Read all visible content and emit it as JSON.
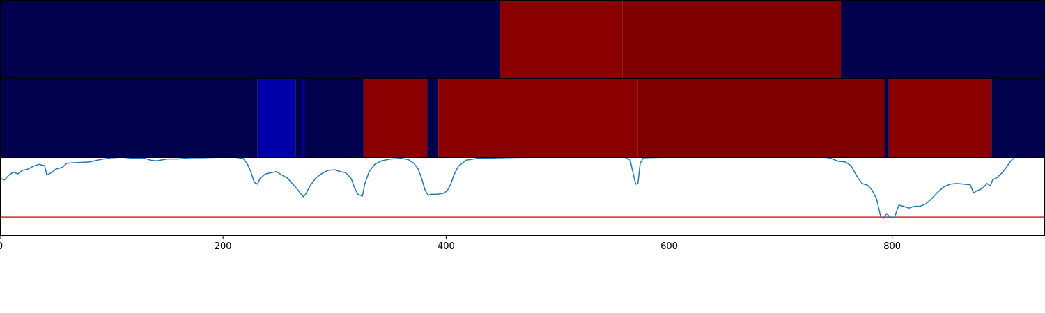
{
  "chart_data": [
    {
      "type": "heatmap",
      "colormap": "seismic",
      "band": "top",
      "segments": [
        {
          "x0": 0,
          "x1": 448,
          "color": "#00004c"
        },
        {
          "x0": 448,
          "x1": 558,
          "color": "#8a0000"
        },
        {
          "x0": 558,
          "x1": 754,
          "color": "#7f0000"
        },
        {
          "x0": 754,
          "x1": 937,
          "color": "#00004c"
        }
      ]
    },
    {
      "type": "heatmap",
      "colormap": "seismic",
      "band": "middle",
      "segments": [
        {
          "x0": 0,
          "x1": 231,
          "color": "#00004c"
        },
        {
          "x0": 231,
          "x1": 265,
          "color": "#0000a8"
        },
        {
          "x0": 265,
          "x1": 271,
          "color": "#00004c"
        },
        {
          "x0": 271,
          "x1": 273,
          "color": "#0000a0"
        },
        {
          "x0": 273,
          "x1": 326,
          "color": "#00004c"
        },
        {
          "x0": 326,
          "x1": 383,
          "color": "#8a0000"
        },
        {
          "x0": 383,
          "x1": 393,
          "color": "#00004c"
        },
        {
          "x0": 393,
          "x1": 572,
          "color": "#8a0000"
        },
        {
          "x0": 572,
          "x1": 793,
          "color": "#7f0000"
        },
        {
          "x0": 793,
          "x1": 797,
          "color": "#00004c"
        },
        {
          "x0": 797,
          "x1": 889,
          "color": "#8a0000"
        },
        {
          "x0": 889,
          "x1": 937,
          "color": "#00004c"
        }
      ]
    },
    {
      "type": "line",
      "xlim": [
        0,
        937
      ],
      "ylim": [
        -0.3,
        1.0
      ],
      "x_ticks": [
        0,
        200,
        400,
        600,
        800
      ],
      "x_tick_labels": [
        "0",
        "200",
        "400",
        "600",
        "800"
      ],
      "threshold": {
        "y": 0.0,
        "color": "#d62728"
      },
      "series": [
        {
          "color": "#1f77b4",
          "points": [
            [
              0,
              0.65
            ],
            [
              4,
              0.62
            ],
            [
              8,
              0.7
            ],
            [
              12,
              0.75
            ],
            [
              16,
              0.72
            ],
            [
              20,
              0.78
            ],
            [
              25,
              0.8
            ],
            [
              30,
              0.85
            ],
            [
              35,
              0.88
            ],
            [
              40,
              0.86
            ],
            [
              42,
              0.7
            ],
            [
              46,
              0.74
            ],
            [
              50,
              0.8
            ],
            [
              56,
              0.83
            ],
            [
              60,
              0.9
            ],
            [
              70,
              0.91
            ],
            [
              80,
              0.92
            ],
            [
              90,
              0.96
            ],
            [
              100,
              0.99
            ],
            [
              110,
              1.0
            ],
            [
              120,
              0.98
            ],
            [
              130,
              0.98
            ],
            [
              135,
              0.95
            ],
            [
              140,
              0.94
            ],
            [
              150,
              0.97
            ],
            [
              160,
              0.97
            ],
            [
              170,
              0.99
            ],
            [
              180,
              0.99
            ],
            [
              200,
              1.0
            ],
            [
              210,
              1.0
            ],
            [
              218,
              0.98
            ],
            [
              222,
              0.88
            ],
            [
              225,
              0.75
            ],
            [
              228,
              0.58
            ],
            [
              231,
              0.55
            ],
            [
              233,
              0.64
            ],
            [
              238,
              0.72
            ],
            [
              243,
              0.74
            ],
            [
              248,
              0.76
            ],
            [
              252,
              0.71
            ],
            [
              258,
              0.65
            ],
            [
              262,
              0.56
            ],
            [
              266,
              0.48
            ],
            [
              270,
              0.38
            ],
            [
              272,
              0.34
            ],
            [
              274,
              0.38
            ],
            [
              278,
              0.52
            ],
            [
              283,
              0.65
            ],
            [
              288,
              0.72
            ],
            [
              294,
              0.78
            ],
            [
              300,
              0.79
            ],
            [
              305,
              0.76
            ],
            [
              310,
              0.74
            ],
            [
              315,
              0.64
            ],
            [
              318,
              0.48
            ],
            [
              321,
              0.38
            ],
            [
              325,
              0.35
            ],
            [
              327,
              0.55
            ],
            [
              331,
              0.76
            ],
            [
              336,
              0.88
            ],
            [
              342,
              0.94
            ],
            [
              350,
              0.97
            ],
            [
              360,
              0.98
            ],
            [
              366,
              0.96
            ],
            [
              371,
              0.9
            ],
            [
              375,
              0.8
            ],
            [
              378,
              0.65
            ],
            [
              381,
              0.46
            ],
            [
              384,
              0.36
            ],
            [
              386,
              0.38
            ],
            [
              392,
              0.38
            ],
            [
              398,
              0.4
            ],
            [
              401,
              0.44
            ],
            [
              404,
              0.54
            ],
            [
              407,
              0.7
            ],
            [
              411,
              0.85
            ],
            [
              418,
              0.95
            ],
            [
              428,
              0.98
            ],
            [
              450,
              0.99
            ],
            [
              480,
              1.0
            ],
            [
              510,
              1.0
            ],
            [
              540,
              1.0
            ],
            [
              560,
              1.0
            ],
            [
              565,
              0.95
            ],
            [
              568,
              0.7
            ],
            [
              570,
              0.55
            ],
            [
              572,
              0.56
            ],
            [
              574,
              0.9
            ],
            [
              577,
              0.99
            ],
            [
              600,
              1.0
            ],
            [
              650,
              1.0
            ],
            [
              700,
              1.0
            ],
            [
              740,
              1.0
            ],
            [
              745,
              0.98
            ],
            [
              752,
              0.93
            ],
            [
              758,
              0.92
            ],
            [
              763,
              0.86
            ],
            [
              766,
              0.76
            ],
            [
              769,
              0.66
            ],
            [
              773,
              0.56
            ],
            [
              778,
              0.53
            ],
            [
              782,
              0.45
            ],
            [
              786,
              0.3
            ],
            [
              789,
              0.06
            ],
            [
              790,
              -0.01
            ],
            [
              792,
              -0.02
            ],
            [
              795,
              0.06
            ],
            [
              798,
              0.0
            ],
            [
              802,
              0.0
            ],
            [
              806,
              0.2
            ],
            [
              810,
              0.18
            ],
            [
              815,
              0.15
            ],
            [
              820,
              0.18
            ],
            [
              825,
              0.18
            ],
            [
              830,
              0.22
            ],
            [
              835,
              0.3
            ],
            [
              840,
              0.4
            ],
            [
              846,
              0.5
            ],
            [
              852,
              0.55
            ],
            [
              858,
              0.56
            ],
            [
              864,
              0.55
            ],
            [
              870,
              0.54
            ],
            [
              873,
              0.4
            ],
            [
              876,
              0.44
            ],
            [
              879,
              0.46
            ],
            [
              882,
              0.5
            ],
            [
              885,
              0.56
            ],
            [
              888,
              0.52
            ],
            [
              890,
              0.62
            ],
            [
              894,
              0.66
            ],
            [
              898,
              0.73
            ],
            [
              902,
              0.82
            ],
            [
              906,
              0.93
            ],
            [
              910,
              1.0
            ],
            [
              937,
              1.0
            ]
          ]
        }
      ]
    }
  ]
}
